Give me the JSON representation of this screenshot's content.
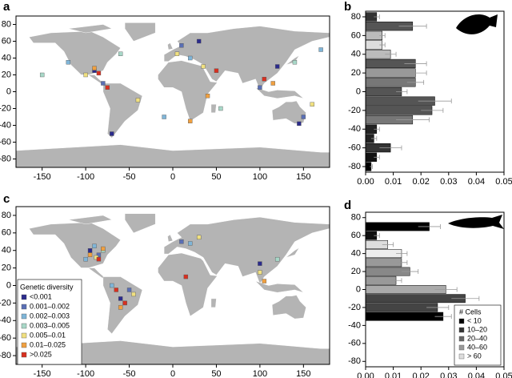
{
  "chart_data": [
    {
      "panel": "a",
      "type": "map",
      "xlim": [
        -180,
        180
      ],
      "ylim": [
        -90,
        90
      ],
      "xticks": [
        -150,
        -100,
        -50,
        0,
        50,
        100,
        150
      ],
      "yticks": [
        -80,
        -60,
        -40,
        -20,
        0,
        20,
        40,
        60,
        80
      ],
      "series": [
        {
          "color": "#2b2b8c",
          "x": [
            -70,
            120,
            30,
            -90,
            145
          ],
          "y": [
            -50,
            30,
            60,
            25,
            -38
          ]
        },
        {
          "color": "#5a6fb5",
          "x": [
            -80,
            10,
            100,
            150
          ],
          "y": [
            10,
            55,
            5,
            -30
          ]
        },
        {
          "color": "#7fb5d8",
          "x": [
            -120,
            20,
            -10,
            170
          ],
          "y": [
            35,
            40,
            -30,
            50
          ]
        },
        {
          "color": "#a8d8c8",
          "x": [
            -60,
            140,
            -150,
            55
          ],
          "y": [
            45,
            35,
            20,
            -20
          ]
        },
        {
          "color": "#f0e080",
          "x": [
            -40,
            5,
            35,
            160,
            -100
          ],
          "y": [
            -10,
            45,
            30,
            -15,
            20
          ]
        },
        {
          "color": "#f0a040",
          "x": [
            -90,
            40,
            115,
            20
          ],
          "y": [
            28,
            -5,
            10,
            -35
          ]
        },
        {
          "color": "#d83020",
          "x": [
            -85,
            105,
            50,
            -75
          ],
          "y": [
            22,
            15,
            25,
            5
          ]
        }
      ]
    },
    {
      "panel": "b",
      "type": "bar",
      "xlim": [
        0,
        0.05
      ],
      "ylim": [
        -86,
        86
      ],
      "xticks": [
        {
          "value": 0,
          "label": "0.00"
        },
        0.01,
        0.02,
        0.03,
        0.04,
        0.05
      ],
      "yticks": [
        -80,
        -60,
        -40,
        -20,
        0,
        20,
        40,
        60,
        80
      ],
      "y": [
        80,
        70,
        60,
        50,
        40,
        30,
        20,
        10,
        0,
        -10,
        -20,
        -30,
        -40,
        -50,
        -60,
        -70,
        -80
      ],
      "values": [
        0.004,
        0.017,
        0.006,
        0.006,
        0.009,
        0.018,
        0.018,
        0.018,
        0.013,
        0.025,
        0.024,
        0.017,
        0.004,
        0.003,
        0.009,
        0.004,
        0.002
      ],
      "errors": [
        0.001,
        0.005,
        0.001,
        0.001,
        0.002,
        0.004,
        0.004,
        0.003,
        0.002,
        0.006,
        0.004,
        0.006,
        0.001,
        0.001,
        0.004,
        0.001,
        0.0005
      ],
      "colors": [
        "#333333",
        "#555555",
        "#bbbbbb",
        "#dddddd",
        "#bbbbbb",
        "#555555",
        "#999999",
        "#777777",
        "#555555",
        "#555555",
        "#555555",
        "#777777",
        "#222222",
        "#222222",
        "#333333",
        "#111111",
        "#000000"
      ]
    },
    {
      "panel": "c",
      "type": "map",
      "xlim": [
        -180,
        180
      ],
      "ylim": [
        -90,
        90
      ],
      "xticks": [
        -150,
        -100,
        -50,
        0,
        50,
        100,
        150
      ],
      "yticks": [
        -80,
        -60,
        -40,
        -20,
        0,
        20,
        40,
        60,
        80
      ],
      "legend_title": "Genetic diversity",
      "series": [
        {
          "name": "<0.001",
          "color": "#2b2b8c",
          "x": [
            -95,
            -60,
            100
          ],
          "y": [
            40,
            -15,
            25
          ]
        },
        {
          "name": "0.001–0.002",
          "color": "#5a6fb5",
          "x": [
            -85,
            -50,
            10
          ],
          "y": [
            35,
            -5,
            50
          ]
        },
        {
          "name": "0.002–0.003",
          "color": "#7fb5d8",
          "x": [
            -90,
            -70,
            20,
            -100
          ],
          "y": [
            45,
            0,
            48,
            30
          ]
        },
        {
          "name": "0.003–0.005",
          "color": "#a8d8c8",
          "x": [
            -80,
            -55,
            120
          ],
          "y": [
            40,
            -20,
            30
          ]
        },
        {
          "name": "0.005–0.01",
          "color": "#f0e080",
          "x": [
            -88,
            -45,
            100,
            30
          ],
          "y": [
            32,
            -10,
            15,
            55
          ]
        },
        {
          "name": "0.01–0.025",
          "color": "#f0a040",
          "x": [
            -95,
            -60,
            -80,
            105
          ],
          "y": [
            35,
            -25,
            42,
            5
          ]
        },
        {
          "name": ">0.025",
          "color": "#d83020",
          "x": [
            -85,
            -55,
            -65,
            15
          ],
          "y": [
            30,
            -20,
            -5,
            10
          ]
        }
      ]
    },
    {
      "panel": "d",
      "type": "bar",
      "xlim": [
        0,
        0.05
      ],
      "ylim": [
        -86,
        86
      ],
      "xticks": [
        {
          "value": 0,
          "label": "0.00"
        },
        0.01,
        0.02,
        0.03,
        0.04,
        0.05
      ],
      "yticks": [
        -80,
        -60,
        -40,
        -20,
        0,
        20,
        40,
        60,
        80
      ],
      "y": [
        70,
        60,
        50,
        40,
        30,
        20,
        10,
        0,
        -10,
        -20,
        -30
      ],
      "values": [
        0.023,
        0.004,
        0.008,
        0.013,
        0.013,
        0.016,
        0.011,
        0.029,
        0.036,
        0.026,
        0.028
      ],
      "errors": [
        0.004,
        0.001,
        0.002,
        0.002,
        0.002,
        0.003,
        0.002,
        0.004,
        0.005,
        0.004,
        0.003
      ],
      "colors": [
        "#000000",
        "#111111",
        "#dddddd",
        "#eeeeee",
        "#999999",
        "#888888",
        "#999999",
        "#aaaaaa",
        "#444444",
        "#444444",
        "#000000"
      ],
      "legend_title": "# Cells",
      "legend": [
        {
          "name": "< 10",
          "color": "#000000"
        },
        {
          "name": "10–20",
          "color": "#333333"
        },
        {
          "name": "20–40",
          "color": "#666666"
        },
        {
          "name": "40–60",
          "color": "#999999"
        },
        {
          "name": "> 60",
          "color": "#dddddd"
        }
      ]
    }
  ]
}
